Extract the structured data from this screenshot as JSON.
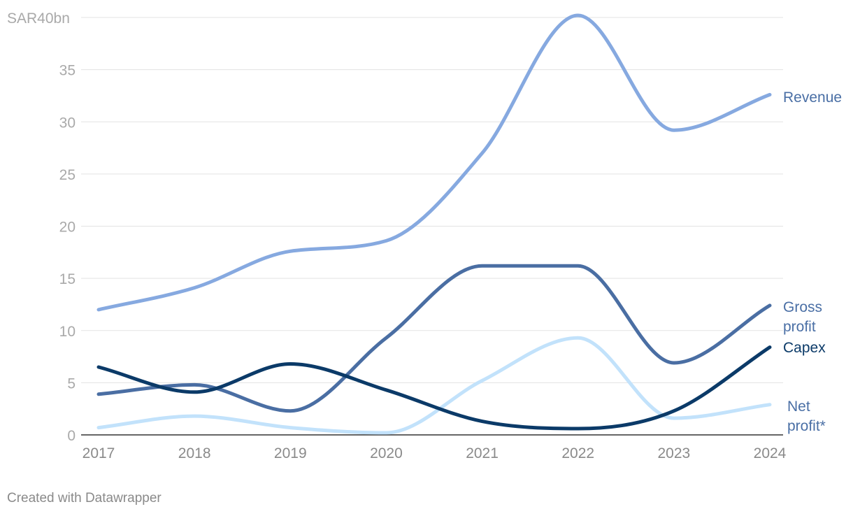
{
  "chart_data": {
    "type": "line",
    "x": [
      "2017",
      "2018",
      "2019",
      "2020",
      "2021",
      "2022",
      "2023",
      "2024"
    ],
    "y_unit_label": "SAR40bn",
    "yticks": [
      "0",
      "5",
      "10",
      "15",
      "20",
      "25",
      "30",
      "35"
    ],
    "ylim": [
      0,
      40
    ],
    "grid": true,
    "legend": "direct labels at line ends",
    "series": [
      {
        "name": "Revenue",
        "label_lines": [
          "Revenue"
        ],
        "color": "#86a9e0",
        "label_color": "#4a6fa5",
        "values": [
          12.0,
          14.1,
          17.6,
          18.6,
          27.0,
          40.2,
          29.2,
          32.6
        ]
      },
      {
        "name": "Gross profit",
        "label_lines": [
          "Gross",
          "profit"
        ],
        "color": "#4a6ea3",
        "label_color": "#4a6fa5",
        "values": [
          3.9,
          4.8,
          2.3,
          9.3,
          16.2,
          16.2,
          6.9,
          12.4
        ]
      },
      {
        "name": "Capex",
        "label_lines": [
          "Capex"
        ],
        "color": "#0b3a68",
        "label_color": "#0b3a68",
        "values": [
          6.5,
          4.1,
          6.8,
          4.3,
          1.3,
          0.6,
          2.3,
          8.4
        ]
      },
      {
        "name": "Net profit*",
        "label_lines": [
          "Net",
          "profit*"
        ],
        "color": "#c2e2fb",
        "label_color": "#4a6fa5",
        "values": [
          0.7,
          1.8,
          0.7,
          0.2,
          5.2,
          9.3,
          1.6,
          2.9
        ]
      }
    ]
  },
  "footer": {
    "text": "Created with Datawrapper"
  }
}
